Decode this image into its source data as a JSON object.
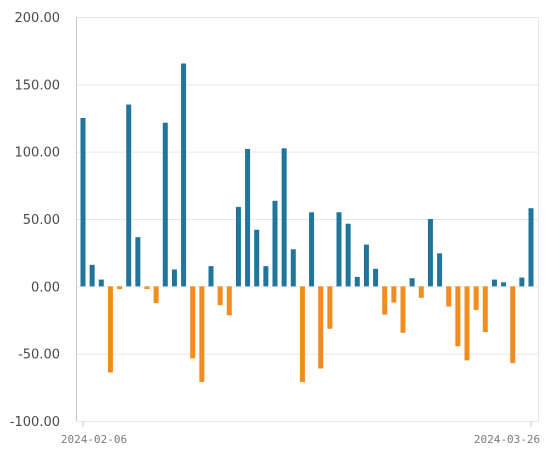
{
  "chart_data": {
    "type": "bar",
    "title": "",
    "xlabel": "",
    "ylabel": "",
    "ylim": [
      -100,
      200
    ],
    "yticks": [
      200,
      150,
      100,
      50,
      0,
      -50,
      -100
    ],
    "ytick_labels": [
      "200.00",
      "150.00",
      "100.00",
      "50.00",
      "0.00",
      "-50.00",
      "-100.00"
    ],
    "xtick_labels": [
      "2024-02-06",
      "2024-03-26"
    ],
    "x_range": [
      "2024-02-06",
      "2024-03-26"
    ],
    "grid": true,
    "legend": "none",
    "colors": {
      "positive": "#21759b",
      "negative": "#f28c1e",
      "grid": "#e6e6e6",
      "axis": "#c8c8c8"
    },
    "x": [
      "2024-02-06",
      "2024-02-07",
      "2024-02-08",
      "2024-02-09",
      "2024-02-10",
      "2024-02-11",
      "2024-02-12",
      "2024-02-13",
      "2024-02-14",
      "2024-02-15",
      "2024-02-16",
      "2024-02-17",
      "2024-02-18",
      "2024-02-19",
      "2024-02-20",
      "2024-02-21",
      "2024-02-22",
      "2024-02-23",
      "2024-02-24",
      "2024-02-25",
      "2024-02-26",
      "2024-02-27",
      "2024-02-28",
      "2024-02-29",
      "2024-03-01",
      "2024-03-02",
      "2024-03-03",
      "2024-03-04",
      "2024-03-05",
      "2024-03-06",
      "2024-03-07",
      "2024-03-08",
      "2024-03-09",
      "2024-03-10",
      "2024-03-11",
      "2024-03-12",
      "2024-03-13",
      "2024-03-14",
      "2024-03-15",
      "2024-03-16",
      "2024-03-17",
      "2024-03-18",
      "2024-03-19",
      "2024-03-20",
      "2024-03-21",
      "2024-03-22",
      "2024-03-23",
      "2024-03-24",
      "2024-03-25",
      "2024-03-26"
    ],
    "values": [
      125,
      16,
      5,
      -64,
      -2,
      135,
      36.5,
      -2,
      -12.5,
      121.5,
      12.5,
      165.5,
      -53.5,
      -71,
      15,
      -14,
      -21.5,
      59,
      102,
      42,
      15,
      63.5,
      102.5,
      27.5,
      -71,
      55,
      -61,
      -31.5,
      55,
      46.5,
      7,
      31,
      13,
      -21,
      -12,
      -34.5,
      6,
      -8.5,
      50,
      24.5,
      -15,
      -44.5,
      -55,
      -17.5,
      -34,
      5,
      3,
      -57,
      6.5,
      58
    ]
  }
}
